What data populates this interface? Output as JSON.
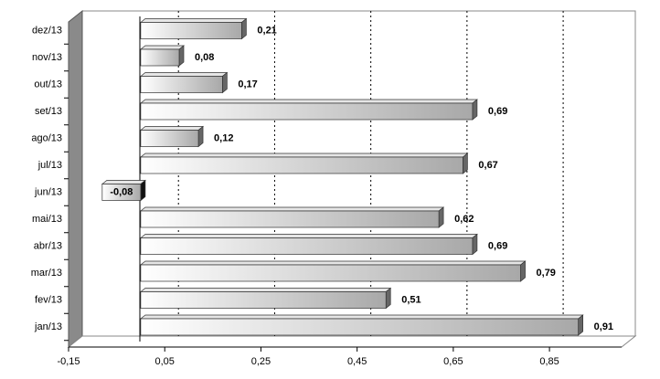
{
  "chart_data": {
    "type": "bar",
    "orientation": "horizontal",
    "categories": [
      "jan/13",
      "fev/13",
      "mar/13",
      "abr/13",
      "mai/13",
      "jun/13",
      "jul/13",
      "ago/13",
      "set/13",
      "out/13",
      "nov/13",
      "dez/13"
    ],
    "values": [
      0.91,
      0.51,
      0.79,
      0.69,
      0.62,
      -0.08,
      0.67,
      0.12,
      0.69,
      0.17,
      0.08,
      0.21
    ],
    "value_labels": [
      "0,91",
      "0,51",
      "0,79",
      "0,69",
      "0,62",
      "-0,08",
      "0,67",
      "0,12",
      "0,69",
      "0,17",
      "0,08",
      "0,21"
    ],
    "xlim": [
      -0.15,
      1.0
    ],
    "xticks": [
      {
        "value": -0.15,
        "label": "-0,15"
      },
      {
        "value": 0.05,
        "label": "0,05"
      },
      {
        "value": 0.25,
        "label": "0,25"
      },
      {
        "value": 0.45,
        "label": "0,45"
      },
      {
        "value": 0.65,
        "label": "0,65"
      },
      {
        "value": 0.85,
        "label": "0,85"
      }
    ],
    "grid": true,
    "color": "#c8c8c8"
  }
}
